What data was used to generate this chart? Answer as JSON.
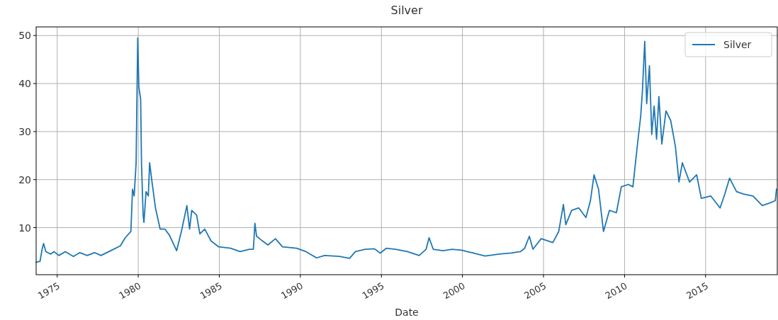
{
  "chart_data": {
    "type": "line",
    "title": "Silver",
    "xlabel": "Date",
    "x": [
      "1973-09-13",
      "1973-12-10",
      "1974-01-30",
      "1974-02-28",
      "1974-04-20",
      "1974-08-08",
      "1974-10-20",
      "1975-02-07",
      "1975-07-01",
      "1976-01-01",
      "1976-05-25",
      "1976-11-06",
      "1977-04-20",
      "1977-09-13",
      "1978-04-20",
      "1978-11-24",
      "1979-03-14",
      "1979-07-19",
      "1979-08-25",
      "1979-10-01",
      "1979-11-14",
      "1979-12-20",
      "1980-01-15",
      "1980-02-24",
      "1980-03-14",
      "1980-04-20",
      "1980-05-08",
      "1980-06-25",
      "1980-08-15",
      "1980-09-13",
      "1980-11-06",
      "1981-01-23",
      "1981-05-08",
      "1981-08-22",
      "1981-12-05",
      "1982-05-15",
      "1982-08-30",
      "1983-01-01",
      "1983-03-03",
      "1983-04-20",
      "1983-08-08",
      "1983-10-20",
      "1984-02-07",
      "1984-07-01",
      "1984-12-20",
      "1985-09-13",
      "1986-04-13",
      "1986-11-10",
      "1987-02-07",
      "1987-03-14",
      "1987-04-20",
      "1987-08-08",
      "1988-01-01",
      "1988-06-18",
      "1988-11-24",
      "1989-10-08",
      "1990-05-08",
      "1991-01-01",
      "1991-07-01",
      "1992-05-25",
      "1993-01-15",
      "1993-05-25",
      "1994-01-01",
      "1994-07-27",
      "1994-12-05",
      "1995-04-20",
      "1995-11-14",
      "1996-08-08",
      "1997-05-01",
      "1997-10-05",
      "1997-12-10",
      "1998-03-14",
      "1998-10-20",
      "1999-05-11",
      "1999-12-10",
      "2000-09-01",
      "2001-05-25",
      "2002-04-10",
      "2003-01-01",
      "2003-07-30",
      "2003-11-02",
      "2004-02-17",
      "2004-05-08",
      "2004-11-10",
      "2005-07-30",
      "2005-12-10",
      "2006-03-25",
      "2006-05-18",
      "2006-09-27",
      "2007-03-07",
      "2007-08-15",
      "2007-11-24",
      "2008-02-14",
      "2008-05-25",
      "2008-09-13",
      "2009-01-26",
      "2009-07-01",
      "2009-10-20",
      "2010-03-25",
      "2010-07-08",
      "2010-10-20",
      "2011-01-01",
      "2011-02-07",
      "2011-04-01",
      "2011-05-15",
      "2011-07-16",
      "2011-09-06",
      "2011-10-30",
      "2011-12-24",
      "2012-02-14",
      "2012-04-20",
      "2012-07-23",
      "2012-11-06",
      "2013-02-20",
      "2013-05-11",
      "2013-07-27",
      "2014-01-05",
      "2014-06-14",
      "2014-09-27",
      "2015-04-27",
      "2015-11-24",
      "2016-03-10",
      "2016-06-25",
      "2016-11-28",
      "2017-05-08",
      "2017-12-05",
      "2018-07-01",
      "2018-12-10",
      "2019-04-20",
      "2019-05-18"
    ],
    "series": [
      {
        "name": "Silver",
        "color": "#1f77b4",
        "values": [
          2.8,
          3.0,
          5.7,
          6.7,
          5.0,
          4.5,
          5.0,
          4.2,
          5.0,
          4.0,
          4.8,
          4.2,
          4.8,
          4.2,
          5.2,
          6.2,
          7.9,
          9.2,
          18.0,
          16.6,
          23.5,
          49.5,
          39.2,
          36.8,
          23.5,
          12.6,
          11.1,
          17.5,
          16.6,
          23.5,
          19.5,
          14.1,
          9.7,
          9.7,
          8.4,
          5.2,
          9.2,
          14.6,
          9.7,
          13.6,
          12.6,
          8.7,
          9.7,
          7.2,
          6.0,
          5.7,
          5.0,
          5.5,
          5.5,
          10.9,
          8.2,
          7.4,
          6.4,
          7.7,
          6.0,
          5.7,
          5.0,
          3.7,
          4.2,
          4.0,
          3.6,
          5.0,
          5.5,
          5.6,
          4.7,
          5.7,
          5.5,
          5.0,
          4.2,
          5.5,
          7.9,
          5.5,
          5.2,
          5.5,
          5.3,
          4.7,
          4.1,
          4.5,
          4.7,
          5.0,
          5.7,
          8.2,
          5.5,
          7.7,
          6.9,
          9.2,
          14.8,
          10.6,
          13.6,
          14.1,
          12.1,
          15.6,
          21.0,
          18.0,
          9.2,
          13.6,
          13.1,
          18.5,
          19.0,
          18.5,
          27.4,
          33.3,
          38.3,
          48.8,
          35.8,
          43.7,
          29.4,
          35.3,
          28.4,
          37.3,
          27.4,
          34.3,
          32.3,
          26.9,
          19.5,
          23.5,
          19.5,
          21.0,
          16.1,
          16.6,
          14.1,
          17.0,
          20.3,
          17.5,
          17.0,
          16.6,
          14.6,
          15.1,
          15.6,
          18.0
        ]
      }
    ],
    "xlim": [
      "1973-09-13",
      "2019-06-05"
    ],
    "xticks": [
      "1975",
      "1980",
      "1985",
      "1990",
      "1995",
      "2000",
      "2005",
      "2010",
      "2015"
    ],
    "ylim": [
      0.2,
      51.8
    ],
    "yticks": [
      10,
      20,
      30,
      40,
      50
    ],
    "grid": true,
    "legend": "top right",
    "line_style": "solid"
  }
}
